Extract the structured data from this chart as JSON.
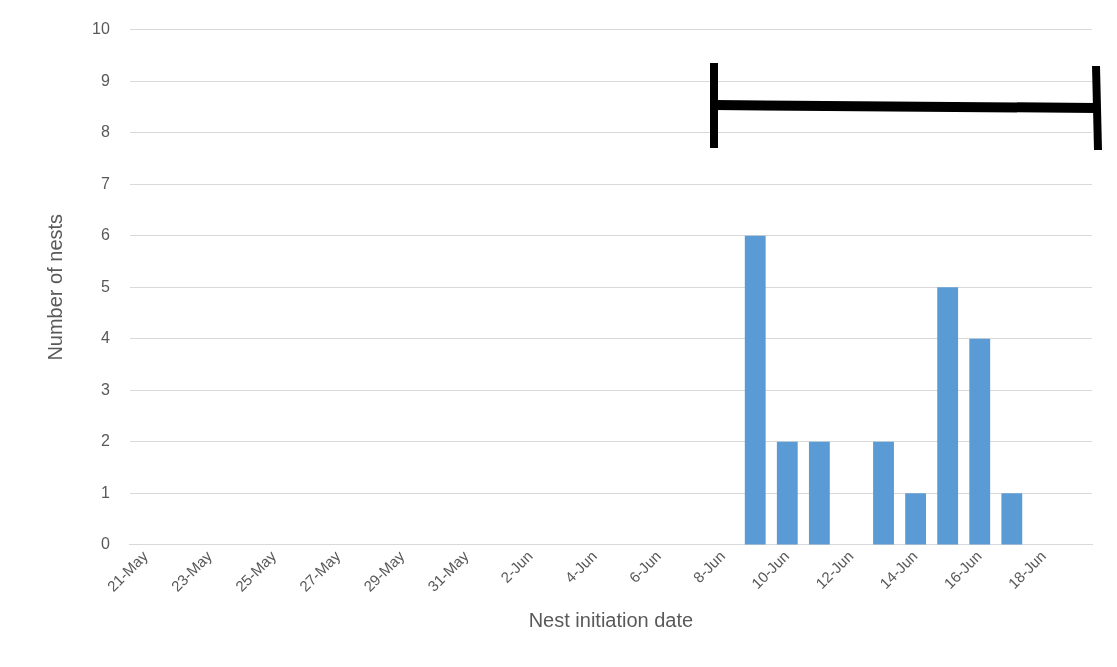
{
  "chart_data": {
    "type": "bar",
    "xlabel": "Nest initiation date",
    "ylabel": "Number of nests",
    "categories": [
      "21-May",
      null,
      "23-May",
      null,
      "25-May",
      null,
      "27-May",
      null,
      "29-May",
      null,
      "31-May",
      null,
      "2-Jun",
      null,
      "4-Jun",
      null,
      "6-Jun",
      null,
      "8-Jun",
      null,
      "10-Jun",
      null,
      "12-Jun",
      null,
      "14-Jun",
      null,
      "16-Jun",
      null,
      "18-Jun",
      null
    ],
    "values": [
      0,
      0,
      0,
      0,
      0,
      0,
      0,
      0,
      0,
      0,
      0,
      0,
      0,
      0,
      0,
      0,
      0,
      0,
      0,
      6,
      2,
      2,
      0,
      2,
      1,
      5,
      4,
      1,
      0,
      0
    ],
    "color": "#5b9bd5",
    "ylim": [
      0,
      10
    ],
    "yticks": [
      0,
      1,
      2,
      3,
      4,
      5,
      6,
      7,
      8,
      9,
      10
    ],
    "grid": "y"
  }
}
